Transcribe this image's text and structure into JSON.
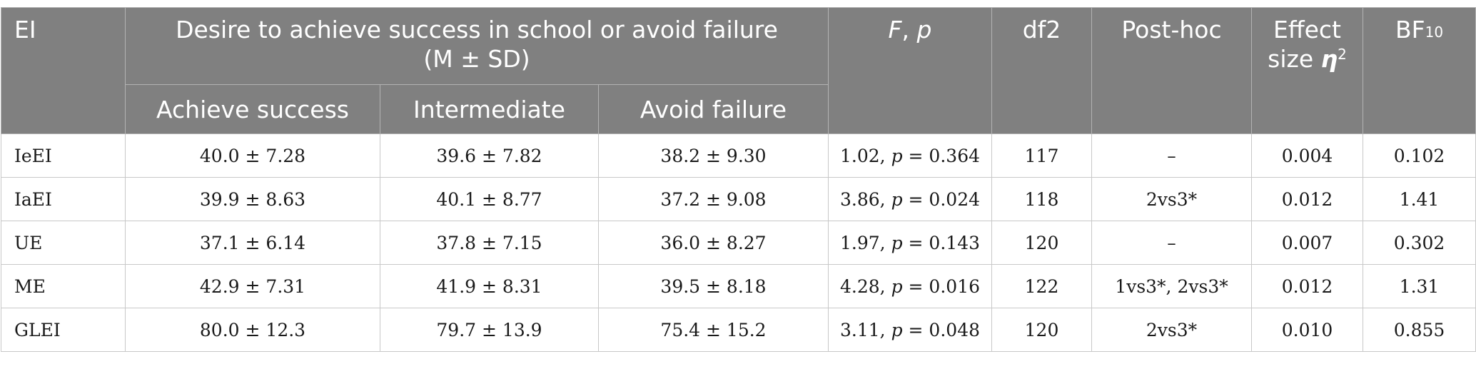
{
  "header": {
    "ei": "EI",
    "desire_title": "Desire to achieve success in school or avoid failure",
    "desire_sub": "(M ± SD)",
    "f_label": "F",
    "f_sep": ", ",
    "p_label": "p",
    "df2": "df2",
    "posthoc": "Post-hoc",
    "effect_line1": "Effect",
    "effect_line2": "size ",
    "eta": "η",
    "eta_sup": "2",
    "bf": "BF",
    "bf_sub": "10",
    "sub_cols": [
      "Achieve success",
      "Intermediate",
      "Avoid failure"
    ]
  },
  "rows": [
    {
      "ei": "IeEI",
      "achieve": "40.0 ± 7.28",
      "intermediate": "39.6 ± 7.82",
      "avoid": "38.2 ± 9.30",
      "f": "1.02, ",
      "p": "p",
      "pval": " = 0.364",
      "df2": "117",
      "posthoc": "–",
      "effect": "0.004",
      "bf": "0.102"
    },
    {
      "ei": "IaEI",
      "achieve": "39.9 ± 8.63",
      "intermediate": "40.1 ± 8.77",
      "avoid": "37.2 ± 9.08",
      "f": "3.86, ",
      "p": "p",
      "pval": " = 0.024",
      "df2": "118",
      "posthoc": "2vs3*",
      "effect": "0.012",
      "bf": "1.41"
    },
    {
      "ei": "UE",
      "achieve": "37.1 ± 6.14",
      "intermediate": "37.8 ± 7.15",
      "avoid": "36.0 ± 8.27",
      "f": "1.97, ",
      "p": "p",
      "pval": " = 0.143",
      "df2": "120",
      "posthoc": "–",
      "effect": "0.007",
      "bf": "0.302"
    },
    {
      "ei": "ME",
      "achieve": "42.9 ± 7.31",
      "intermediate": "41.9 ± 8.31",
      "avoid": "39.5 ± 8.18",
      "f": "4.28, ",
      "p": "p",
      "pval": " = 0.016",
      "df2": "122",
      "posthoc": "1vs3*, 2vs3*",
      "effect": "0.012",
      "bf": "1.31"
    },
    {
      "ei": "GLEI",
      "achieve": "80.0 ± 12.3",
      "intermediate": "79.7 ± 13.9",
      "avoid": "75.4 ± 15.2",
      "f": "3.11, ",
      "p": "p",
      "pval": " = 0.048",
      "df2": "120",
      "posthoc": "2vs3*",
      "effect": "0.010",
      "bf": "0.855"
    }
  ],
  "colors": {
    "header_bg": "#808080",
    "header_text": "#ffffff",
    "border": "#c8c8c8"
  }
}
